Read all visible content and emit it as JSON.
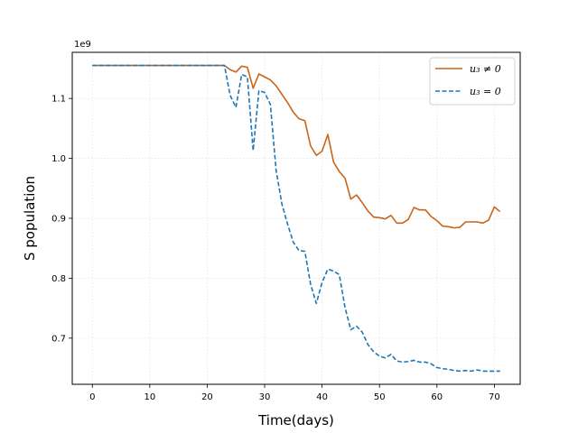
{
  "chart_data": {
    "type": "line",
    "title": "",
    "xlabel": "Time(days)",
    "ylabel": "S population",
    "offset_text": "1e9",
    "xlim": [
      -3.5,
      74.5
    ],
    "ylim": [
      0.623,
      1.177
    ],
    "x_ticks": [
      0,
      10,
      20,
      30,
      40,
      50,
      60,
      70
    ],
    "x_tick_labels": [
      "0",
      "10",
      "20",
      "30",
      "40",
      "50",
      "60",
      "70"
    ],
    "y_ticks": [
      0.7,
      0.8,
      0.9,
      1.0,
      1.1
    ],
    "y_tick_labels": [
      "0.7",
      "0.8",
      "0.9",
      "1.0",
      "1.1"
    ],
    "grid": true,
    "legend_position": "top-right",
    "legend": [
      "u₃ ≠ 0",
      "u₃ = 0"
    ],
    "series": [
      {
        "name": "u₃ ≠ 0",
        "color": "#c8651b",
        "dash": "solid",
        "x": [
          0,
          1,
          2,
          3,
          4,
          5,
          6,
          7,
          8,
          9,
          10,
          11,
          12,
          13,
          14,
          15,
          16,
          17,
          18,
          19,
          20,
          21,
          22,
          23,
          24,
          25,
          26,
          27,
          28,
          29,
          30,
          31,
          32,
          33,
          34,
          35,
          36,
          37,
          38,
          39,
          40,
          41,
          42,
          43,
          44,
          45,
          46,
          47,
          48,
          49,
          50,
          51,
          52,
          53,
          54,
          55,
          56,
          57,
          58,
          59,
          60,
          61,
          62,
          63,
          64,
          65,
          66,
          67,
          68,
          69,
          70,
          71
        ],
        "y": [
          1.155,
          1.155,
          1.155,
          1.155,
          1.155,
          1.155,
          1.155,
          1.155,
          1.155,
          1.155,
          1.155,
          1.155,
          1.155,
          1.155,
          1.155,
          1.155,
          1.155,
          1.155,
          1.155,
          1.155,
          1.155,
          1.155,
          1.155,
          1.155,
          1.148,
          1.144,
          1.154,
          1.152,
          1.117,
          1.141,
          1.136,
          1.131,
          1.121,
          1.107,
          1.093,
          1.077,
          1.066,
          1.063,
          1.021,
          1.005,
          1.012,
          1.04,
          0.994,
          0.978,
          0.967,
          0.932,
          0.939,
          0.926,
          0.912,
          0.902,
          0.901,
          0.899,
          0.905,
          0.892,
          0.892,
          0.898,
          0.918,
          0.914,
          0.914,
          0.903,
          0.896,
          0.887,
          0.886,
          0.884,
          0.885,
          0.894,
          0.894,
          0.894,
          0.892,
          0.897,
          0.919,
          0.911
        ]
      },
      {
        "name": "u₃ = 0",
        "color": "#1f77b4",
        "dash": "dashed",
        "x": [
          0,
          1,
          2,
          3,
          4,
          5,
          6,
          7,
          8,
          9,
          10,
          11,
          12,
          13,
          14,
          15,
          16,
          17,
          18,
          19,
          20,
          21,
          22,
          23,
          24,
          25,
          26,
          27,
          28,
          29,
          30,
          31,
          32,
          33,
          34,
          35,
          36,
          37,
          38,
          39,
          40,
          41,
          42,
          43,
          44,
          45,
          46,
          47,
          48,
          49,
          50,
          51,
          52,
          53,
          54,
          55,
          56,
          57,
          58,
          59,
          60,
          61,
          62,
          63,
          64,
          65,
          66,
          67,
          68,
          69,
          70,
          71
        ],
        "y": [
          1.155,
          1.155,
          1.155,
          1.155,
          1.155,
          1.155,
          1.155,
          1.155,
          1.155,
          1.155,
          1.155,
          1.155,
          1.155,
          1.155,
          1.155,
          1.155,
          1.155,
          1.155,
          1.155,
          1.155,
          1.155,
          1.155,
          1.155,
          1.155,
          1.105,
          1.085,
          1.14,
          1.136,
          1.013,
          1.113,
          1.11,
          1.09,
          0.98,
          0.924,
          0.89,
          0.86,
          0.846,
          0.845,
          0.79,
          0.758,
          0.793,
          0.815,
          0.812,
          0.806,
          0.751,
          0.714,
          0.72,
          0.71,
          0.689,
          0.677,
          0.67,
          0.667,
          0.673,
          0.662,
          0.66,
          0.661,
          0.663,
          0.66,
          0.66,
          0.657,
          0.651,
          0.649,
          0.648,
          0.646,
          0.645,
          0.646,
          0.645,
          0.647,
          0.645,
          0.645,
          0.645,
          0.645
        ]
      }
    ]
  }
}
